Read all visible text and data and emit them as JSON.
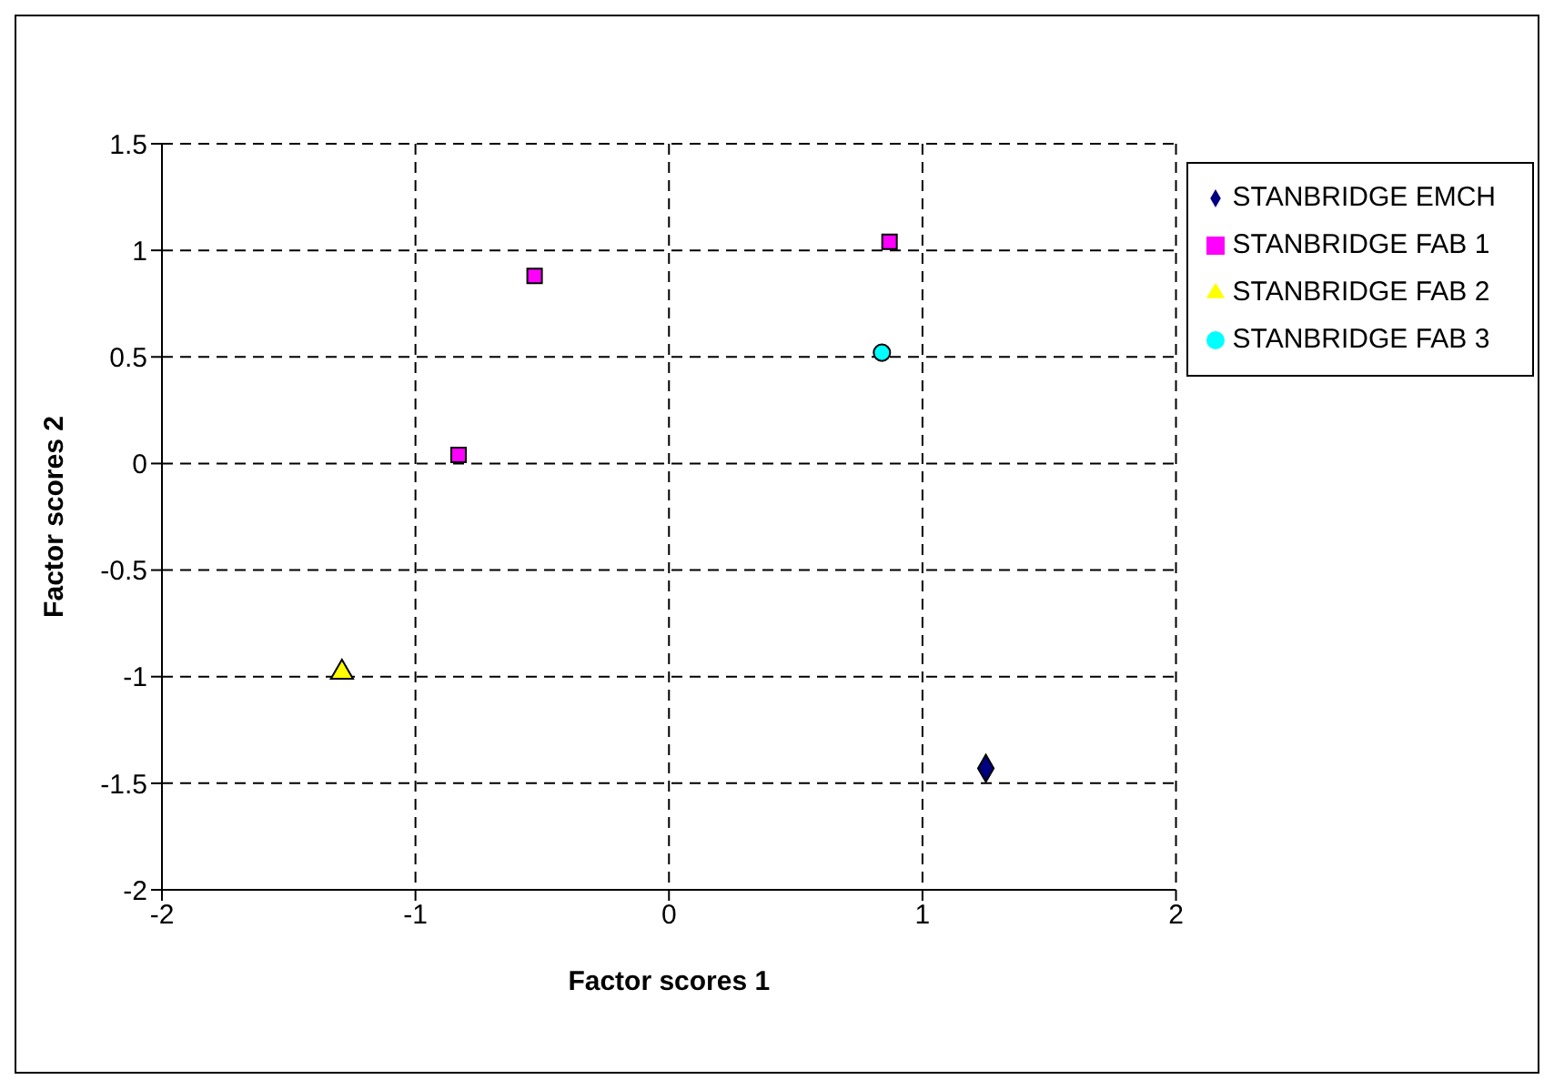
{
  "chart_data": {
    "type": "scatter",
    "xlabel": "Factor scores 1",
    "ylabel": "Factor scores 2",
    "xlim": [
      -2,
      2
    ],
    "ylim": [
      -2,
      1.5
    ],
    "xticks": [
      -2,
      -1,
      0,
      1,
      2
    ],
    "yticks": [
      -2,
      -1.5,
      -1,
      -0.5,
      0,
      0.5,
      1,
      1.5
    ],
    "grid": true,
    "legend": "right",
    "series": [
      {
        "name": "STANBRIDGE EMCH",
        "color": "#000080",
        "marker": "diamond",
        "x": [
          1.25
        ],
        "values": [
          -1.43
        ]
      },
      {
        "name": "STANBRIDGE FAB 1",
        "color": "#ff00ff",
        "marker": "square",
        "x": [
          -0.83,
          -0.53,
          0.87
        ],
        "values": [
          0.04,
          0.88,
          1.04
        ]
      },
      {
        "name": "STANBRIDGE FAB 2",
        "color": "#ffff00",
        "marker": "triangle",
        "x": [
          -1.29
        ],
        "values": [
          -0.98
        ]
      },
      {
        "name": "STANBRIDGE FAB 3",
        "color": "#00ffff",
        "marker": "circle",
        "x": [
          0.84
        ],
        "values": [
          0.52
        ]
      }
    ]
  }
}
